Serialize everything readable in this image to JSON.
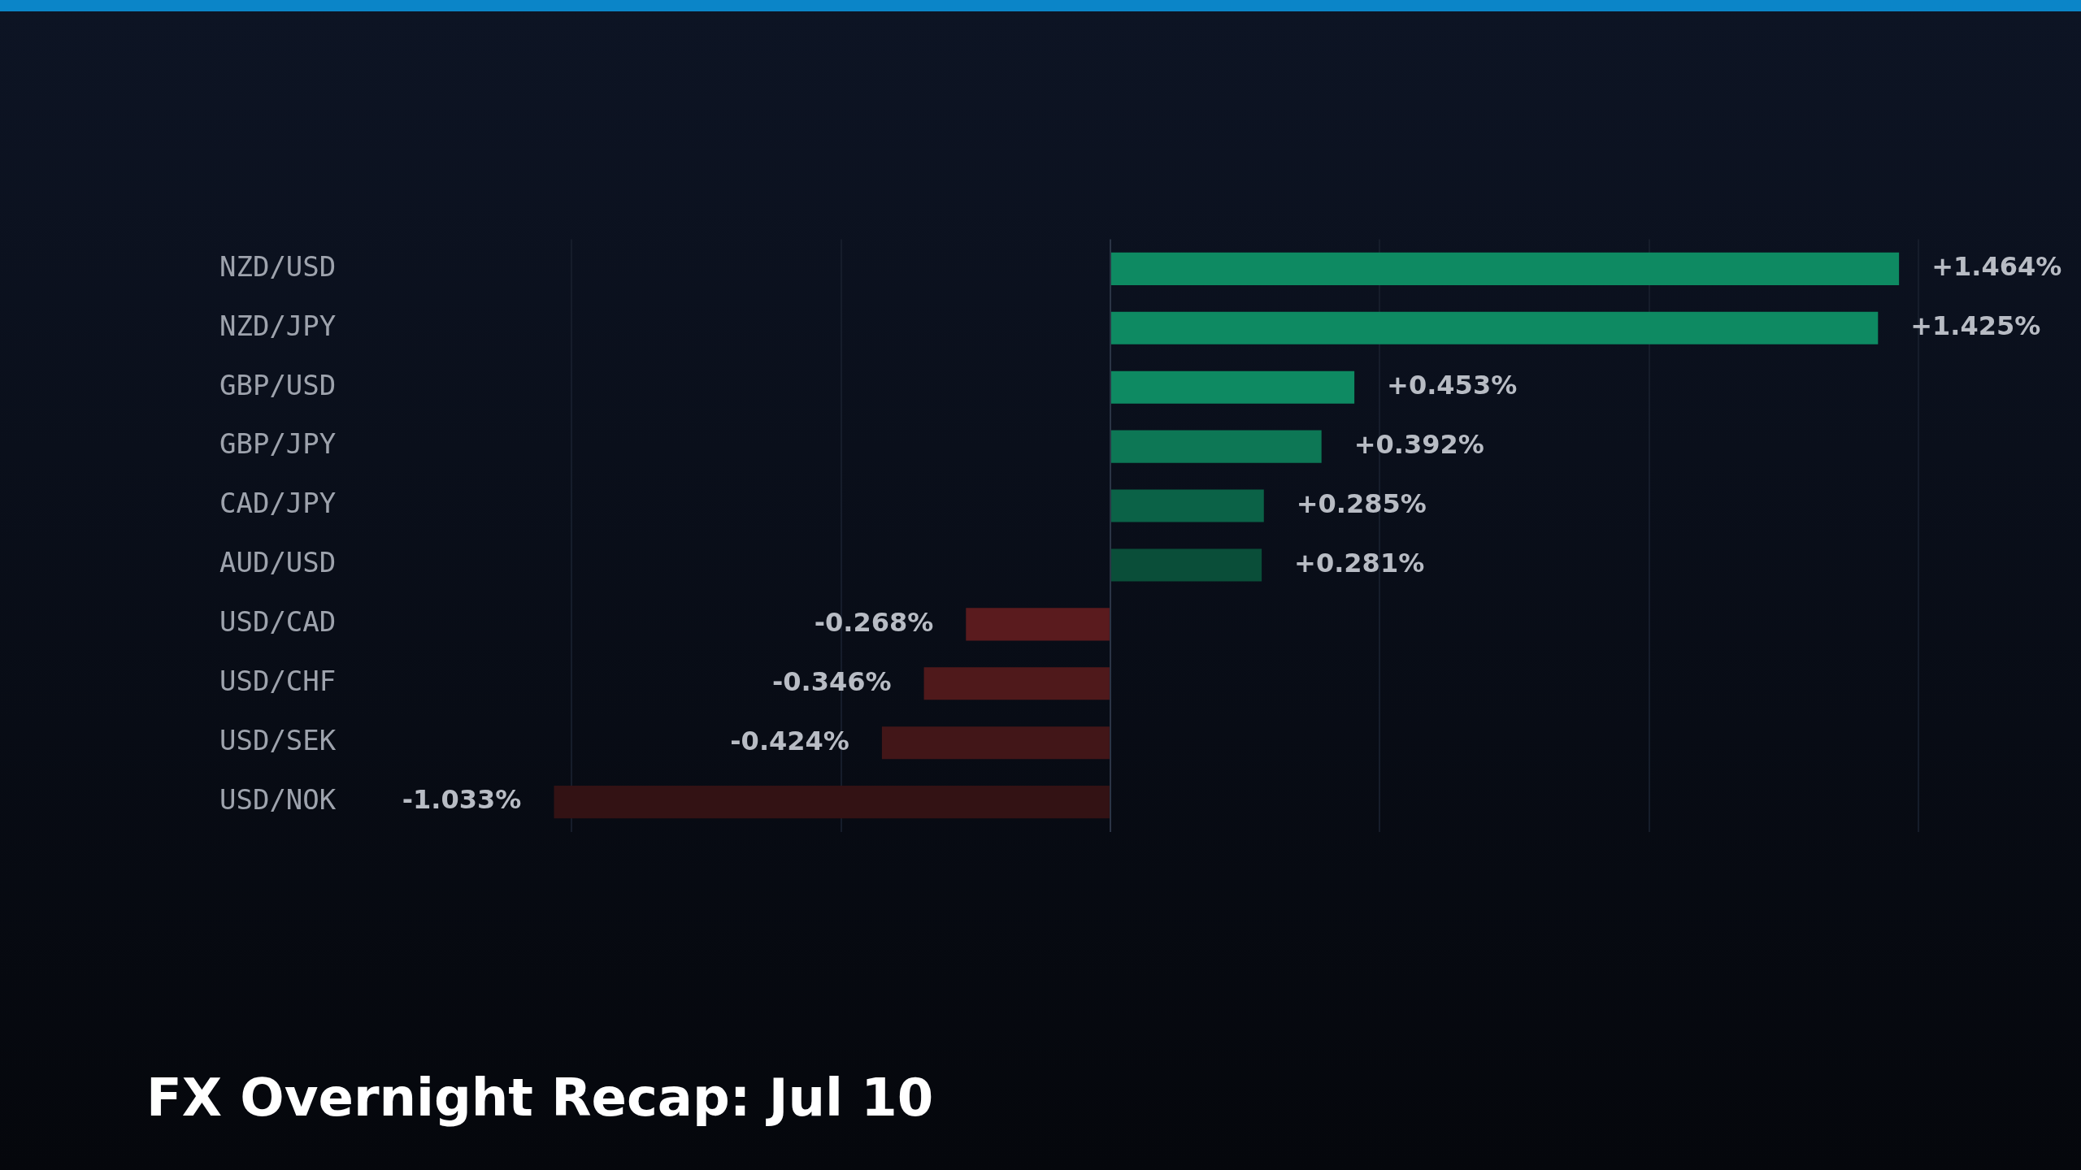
{
  "chart_data": {
    "type": "bar",
    "orientation": "horizontal",
    "title": "FX Overnight Recap: Jul 10",
    "categories": [
      "NZD/USD",
      "NZD/JPY",
      "GBP/USD",
      "GBP/JPY",
      "CAD/JPY",
      "AUD/USD",
      "USD/CAD",
      "USD/CHF",
      "USD/SEK",
      "USD/NOK"
    ],
    "values": [
      1.464,
      1.425,
      0.453,
      0.392,
      0.285,
      0.281,
      -0.268,
      -0.346,
      -0.424,
      -1.033
    ],
    "value_labels": [
      "+1.464%",
      "+1.425%",
      "+0.453%",
      "+0.392%",
      "+0.285%",
      "+0.281%",
      "-0.268%",
      "-0.346%",
      "-0.424%",
      "-1.033%"
    ],
    "colors": [
      "#0e8a62",
      "#0e8a62",
      "#0e8a62",
      "#0d7755",
      "#0b6247",
      "#0a4e39",
      "#5a1b1e",
      "#4f191b",
      "#421618",
      "#331214"
    ],
    "xticks": [
      {
        "value": -1,
        "label": null
      },
      {
        "value": -0.5,
        "label": null
      },
      {
        "value": 0,
        "label": null
      },
      {
        "value": 0.5,
        "label": null
      },
      {
        "value": 1,
        "label": null
      },
      {
        "value": 1.5,
        "label": null
      }
    ],
    "grid": "x",
    "tick_labels": "y",
    "legend": false
  }
}
